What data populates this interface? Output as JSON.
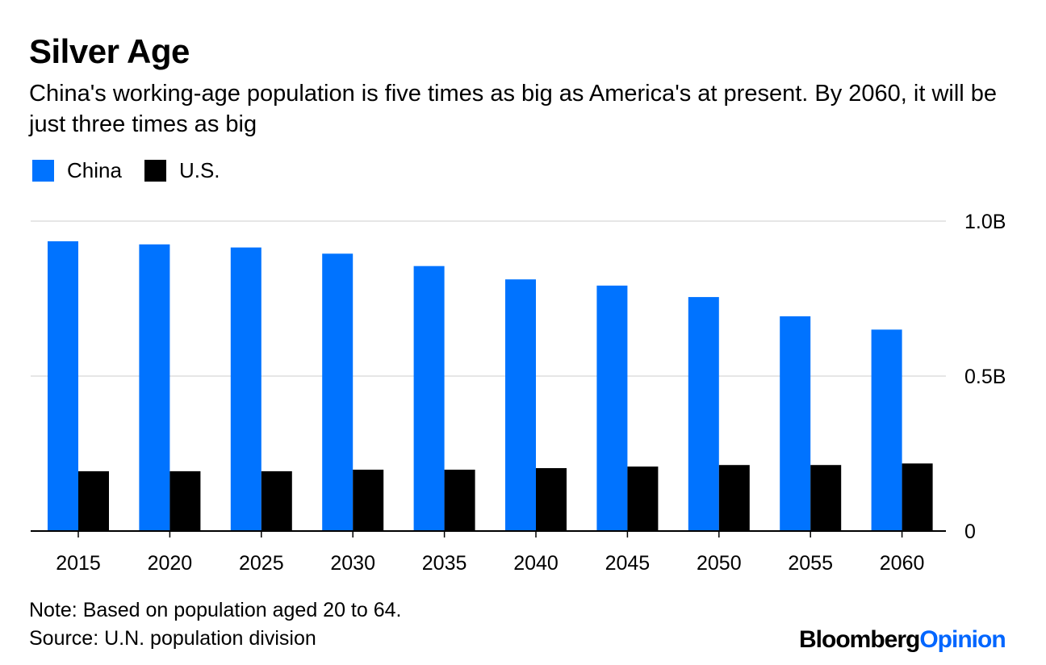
{
  "title": "Silver Age",
  "subtitle": "China's working-age population is five times as big as America's at present. By 2060, it will be just three times as big",
  "note": "Note: Based on population aged 20 to 64.",
  "source": "Source: U.N. population division",
  "brand": {
    "part1": "Bloomberg",
    "part2": "Opinion",
    "color1": "#000000",
    "color2": "#0066ff"
  },
  "chart_data": {
    "type": "bar",
    "title": "Silver Age",
    "xlabel": "",
    "ylabel": "",
    "categories": [
      "2015",
      "2020",
      "2025",
      "2030",
      "2035",
      "2040",
      "2045",
      "2050",
      "2055",
      "2060"
    ],
    "series": [
      {
        "name": "China",
        "color": "#0073ff",
        "values": [
          0.935,
          0.925,
          0.915,
          0.895,
          0.855,
          0.812,
          0.792,
          0.755,
          0.693,
          0.65
        ]
      },
      {
        "name": "U.S.",
        "color": "#000000",
        "values": [
          0.193,
          0.193,
          0.193,
          0.198,
          0.198,
          0.203,
          0.208,
          0.213,
          0.213,
          0.218
        ]
      }
    ],
    "ylim": [
      0,
      1.0
    ],
    "yticks": [
      {
        "value": 0,
        "label": "0"
      },
      {
        "value": 0.5,
        "label": "0.5B"
      },
      {
        "value": 1.0,
        "label": "1.0B"
      }
    ],
    "grid": true,
    "legend_position": "top-left"
  }
}
